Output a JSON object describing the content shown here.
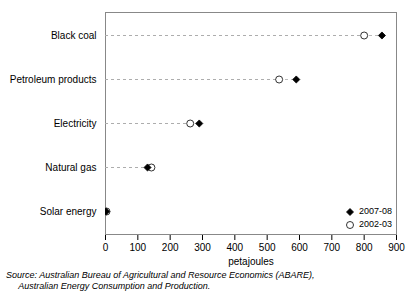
{
  "chart_data": {
    "type": "dot",
    "categories": [
      "Solar energy",
      "Natural gas",
      "Electricity",
      "Petroleum products",
      "Black coal"
    ],
    "series": [
      {
        "name": "2007-08",
        "values": [
          2,
          130,
          290,
          590,
          855
        ],
        "color": "black",
        "marker": "diamond"
      },
      {
        "name": "2002-03",
        "values": [
          3,
          142,
          262,
          537,
          800
        ],
        "color": "black",
        "marker": "circle-open"
      }
    ],
    "color": "#aaaaaa",
    "line_style": "dashed",
    "xlabel": "petajoules",
    "xlim": [
      0,
      900
    ],
    "xticks": [
      0,
      100,
      200,
      300,
      400,
      500,
      600,
      700,
      800,
      900
    ],
    "legend": "lower right",
    "annotations": [
      "Source: Australian Bureau of Agricultural and Resource Economics (ABARE),",
      "     Australian Energy Consumption and Production."
    ]
  }
}
